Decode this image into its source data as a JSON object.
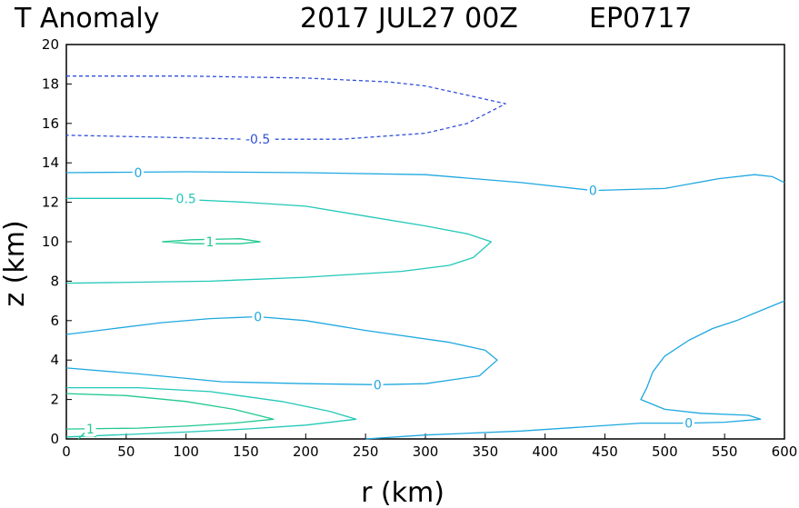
{
  "header": {
    "title": "T Anomaly",
    "datetime": "2017 JUL27 00Z",
    "storm_id": "EP0717"
  },
  "chart_data": {
    "type": "contour",
    "title": "T Anomaly",
    "xlabel": "r (km)",
    "ylabel": "z (km)",
    "xlim": [
      0,
      600
    ],
    "ylim": [
      0,
      20
    ],
    "xticks": [
      0,
      50,
      100,
      150,
      200,
      250,
      300,
      350,
      400,
      450,
      500,
      550,
      600
    ],
    "yticks": [
      0,
      2,
      4,
      6,
      8,
      10,
      12,
      14,
      16,
      18,
      20
    ],
    "grid": false,
    "colors": {
      "neg05": "#3050d8",
      "zero": "#1fa8e0",
      "p05": "#22c8b8",
      "p1": "#20c890"
    },
    "contours": [
      {
        "level": -0.5,
        "style": "dashed",
        "color": "#3050d8",
        "label": "-0.5",
        "label_at": [
          160,
          15.2
        ],
        "points": [
          [
            0,
            18.4
          ],
          [
            100,
            18.4
          ],
          [
            200,
            18.3
          ],
          [
            270,
            18.1
          ],
          [
            300,
            17.9
          ],
          [
            330,
            17.5
          ],
          [
            367,
            17.0
          ],
          [
            335,
            16.0
          ],
          [
            300,
            15.5
          ],
          [
            230,
            15.2
          ],
          [
            150,
            15.2
          ],
          [
            80,
            15.3
          ],
          [
            0,
            15.4
          ]
        ]
      },
      {
        "level": 0,
        "style": "solid",
        "color": "#1fa8e0",
        "label": "0",
        "label_at": [
          60,
          13.5
        ],
        "points": [
          [
            0,
            13.5
          ],
          [
            100,
            13.55
          ],
          [
            200,
            13.5
          ],
          [
            300,
            13.4
          ],
          [
            380,
            13.0
          ],
          [
            440,
            12.6
          ],
          [
            500,
            12.7
          ],
          [
            545,
            13.2
          ],
          [
            575,
            13.4
          ],
          [
            590,
            13.3
          ],
          [
            600,
            13.0
          ]
        ]
      },
      {
        "level": 0,
        "style": "solid",
        "color": "#1fa8e0",
        "label": "0",
        "label_at": [
          440,
          12.6
        ],
        "points": []
      },
      {
        "level": 0.5,
        "style": "solid",
        "color": "#22c8b8",
        "label": "0.5",
        "label_at": [
          100,
          12.2
        ],
        "points": [
          [
            0,
            12.2
          ],
          [
            80,
            12.2
          ],
          [
            150,
            12.0
          ],
          [
            200,
            11.8
          ],
          [
            250,
            11.3
          ],
          [
            300,
            10.8
          ],
          [
            335,
            10.4
          ],
          [
            355,
            10.0
          ],
          [
            340,
            9.2
          ],
          [
            320,
            8.8
          ],
          [
            280,
            8.5
          ],
          [
            200,
            8.2
          ],
          [
            120,
            8.0
          ],
          [
            0,
            7.9
          ]
        ]
      },
      {
        "level": 1,
        "style": "solid",
        "color": "#20c890",
        "label": "1",
        "label_at": [
          120,
          10.0
        ],
        "points": [
          [
            80,
            10.0
          ],
          [
            105,
            10.1
          ],
          [
            145,
            10.15
          ],
          [
            162,
            10.0
          ],
          [
            145,
            9.9
          ],
          [
            105,
            9.9
          ],
          [
            80,
            10.0
          ]
        ]
      },
      {
        "level": 0,
        "style": "solid",
        "color": "#1fa8e0",
        "label": "0",
        "label_at": [
          160,
          6.2
        ],
        "points": [
          [
            0,
            5.3
          ],
          [
            40,
            5.6
          ],
          [
            80,
            5.9
          ],
          [
            120,
            6.1
          ],
          [
            160,
            6.2
          ],
          [
            200,
            6.0
          ],
          [
            250,
            5.5
          ],
          [
            320,
            4.9
          ],
          [
            350,
            4.5
          ],
          [
            360,
            4.0
          ],
          [
            345,
            3.2
          ],
          [
            300,
            2.8
          ],
          [
            260,
            2.75
          ],
          [
            200,
            2.8
          ],
          [
            130,
            2.9
          ],
          [
            60,
            3.3
          ],
          [
            0,
            3.6
          ]
        ]
      },
      {
        "level": 0,
        "style": "solid",
        "color": "#1fa8e0",
        "label": "0",
        "label_at": [
          260,
          2.75
        ],
        "points": []
      },
      {
        "level": 0.5,
        "style": "solid",
        "color": "#22c8b8",
        "label": "",
        "points": [
          [
            0,
            2.6
          ],
          [
            60,
            2.6
          ],
          [
            120,
            2.4
          ],
          [
            180,
            1.9
          ],
          [
            220,
            1.4
          ],
          [
            242,
            1.0
          ],
          [
            200,
            0.7
          ],
          [
            150,
            0.5
          ],
          [
            100,
            0.35
          ],
          [
            60,
            0.25
          ],
          [
            0,
            0.1
          ]
        ]
      },
      {
        "level": 1,
        "style": "solid",
        "color": "#20c890",
        "label": "1",
        "label_at": [
          20,
          0.5
        ],
        "points": [
          [
            0,
            2.3
          ],
          [
            50,
            2.2
          ],
          [
            100,
            1.9
          ],
          [
            140,
            1.5
          ],
          [
            173,
            1.0
          ],
          [
            140,
            0.8
          ],
          [
            100,
            0.65
          ],
          [
            60,
            0.55
          ],
          [
            0,
            0.5
          ]
        ]
      },
      {
        "level": 0,
        "style": "solid",
        "color": "#1fa8e0",
        "label": "0",
        "label_at": [
          520,
          0.8
        ],
        "points": [
          [
            250,
            0.0
          ],
          [
            300,
            0.2
          ],
          [
            380,
            0.4
          ],
          [
            430,
            0.6
          ],
          [
            480,
            0.8
          ],
          [
            520,
            0.8
          ],
          [
            550,
            0.85
          ],
          [
            580,
            1.0
          ],
          [
            570,
            1.2
          ],
          [
            530,
            1.3
          ],
          [
            500,
            1.5
          ],
          [
            480,
            2.0
          ],
          [
            485,
            2.6
          ],
          [
            490,
            3.4
          ],
          [
            500,
            4.2
          ],
          [
            520,
            5.0
          ],
          [
            540,
            5.6
          ],
          [
            560,
            6.0
          ],
          [
            580,
            6.5
          ],
          [
            600,
            7.0
          ]
        ]
      },
      {
        "level": 1.5,
        "style": "solid",
        "color": "#20c890",
        "label": "",
        "points": [
          [
            10,
            0.0
          ],
          [
            15,
            0.3
          ],
          [
            25,
            0.1
          ]
        ]
      }
    ]
  }
}
